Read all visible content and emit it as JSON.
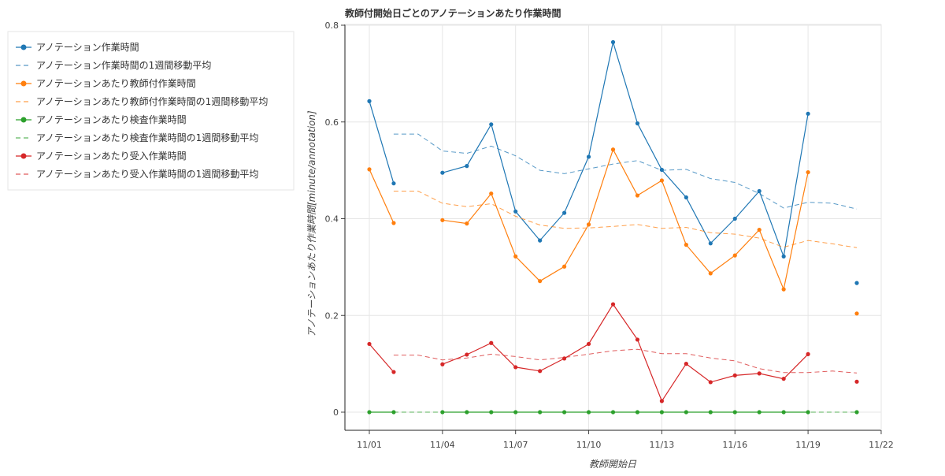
{
  "chart_data": {
    "type": "line",
    "title": "教師付開始日ごとのアノテーションあたり作業時間",
    "xlabel": "教師開始日",
    "ylabel": "アノテーションあたり作業時間[minute/annotation]",
    "x_ticks": [
      "11/01",
      "11/04",
      "11/07",
      "11/10",
      "11/13",
      "11/16",
      "11/19",
      "11/22"
    ],
    "y_ticks": [
      "0",
      "0.2",
      "0.4",
      "0.6",
      "0.8"
    ],
    "ylim": [
      -0.04,
      0.81
    ],
    "xlim": [
      "10/30",
      "11/22"
    ],
    "grid": true,
    "legend_position": "left",
    "x": [
      "11/01",
      "11/02",
      "11/03",
      "11/04",
      "11/05",
      "11/06",
      "11/07",
      "11/08",
      "11/09",
      "11/10",
      "11/11",
      "11/12",
      "11/13",
      "11/14",
      "11/15",
      "11/16",
      "11/17",
      "11/18",
      "11/19",
      "11/20",
      "11/21"
    ],
    "series": [
      {
        "name": "アノテーション作業時間",
        "style": "solid",
        "color": "#1f77b4",
        "values": [
          0.643,
          0.473,
          null,
          0.495,
          0.509,
          0.595,
          0.415,
          0.355,
          0.412,
          0.528,
          0.765,
          0.597,
          0.501,
          0.444,
          0.349,
          0.4,
          0.457,
          0.322,
          0.617,
          null,
          0.267
        ]
      },
      {
        "name": "アノテーション作業時間の1週間移動平均",
        "style": "dashed",
        "color": "#1f77b4",
        "values": [
          null,
          0.575,
          0.575,
          0.54,
          0.535,
          0.55,
          0.53,
          0.5,
          0.493,
          0.503,
          0.513,
          0.52,
          0.5,
          0.502,
          0.483,
          0.475,
          0.452,
          0.422,
          0.434,
          0.432,
          0.42
        ]
      },
      {
        "name": "アノテーションあたり教師付作業時間",
        "style": "solid",
        "color": "#ff7f0e",
        "values": [
          0.502,
          0.391,
          null,
          0.397,
          0.39,
          0.452,
          0.322,
          0.271,
          0.301,
          0.388,
          0.543,
          0.448,
          0.479,
          0.346,
          0.287,
          0.324,
          0.377,
          0.254,
          0.496,
          null,
          0.204
        ]
      },
      {
        "name": "アノテーションあたり教師付作業時間の1週間移動平均",
        "style": "dashed",
        "color": "#ff7f0e",
        "values": [
          null,
          0.457,
          0.457,
          0.432,
          0.425,
          0.431,
          0.405,
          0.387,
          0.38,
          0.381,
          0.384,
          0.388,
          0.38,
          0.382,
          0.371,
          0.368,
          0.36,
          0.341,
          0.355,
          0.348,
          0.34
        ]
      },
      {
        "name": "アノテーションあたり検査作業時間",
        "style": "solid",
        "color": "#2ca02c",
        "values": [
          0,
          0,
          null,
          0,
          0,
          0,
          0,
          0,
          0,
          0,
          0,
          0,
          0,
          0,
          0,
          0,
          0,
          0,
          0,
          null,
          0
        ]
      },
      {
        "name": "アノテーションあたり検査作業時間の1週間移動平均",
        "style": "dashed",
        "color": "#2ca02c",
        "values": [
          null,
          0,
          0,
          0,
          0,
          0,
          0,
          0,
          0,
          0,
          0,
          0,
          0,
          0,
          0,
          0,
          0,
          0,
          0,
          0,
          0
        ]
      },
      {
        "name": "アノテーションあたり受入作業時間",
        "style": "solid",
        "color": "#d62728",
        "values": [
          0.141,
          0.083,
          null,
          0.099,
          0.119,
          0.143,
          0.093,
          0.085,
          0.111,
          0.141,
          0.223,
          0.15,
          0.023,
          0.1,
          0.062,
          0.076,
          0.08,
          0.069,
          0.12,
          null,
          0.063
        ]
      },
      {
        "name": "アノテーションあたり受入作業時間の1週間移動平均",
        "style": "dashed",
        "color": "#d62728",
        "values": [
          null,
          0.118,
          0.118,
          0.108,
          0.112,
          0.12,
          0.115,
          0.108,
          0.113,
          0.12,
          0.127,
          0.13,
          0.121,
          0.121,
          0.112,
          0.106,
          0.09,
          0.082,
          0.082,
          0.085,
          0.081
        ]
      }
    ]
  }
}
